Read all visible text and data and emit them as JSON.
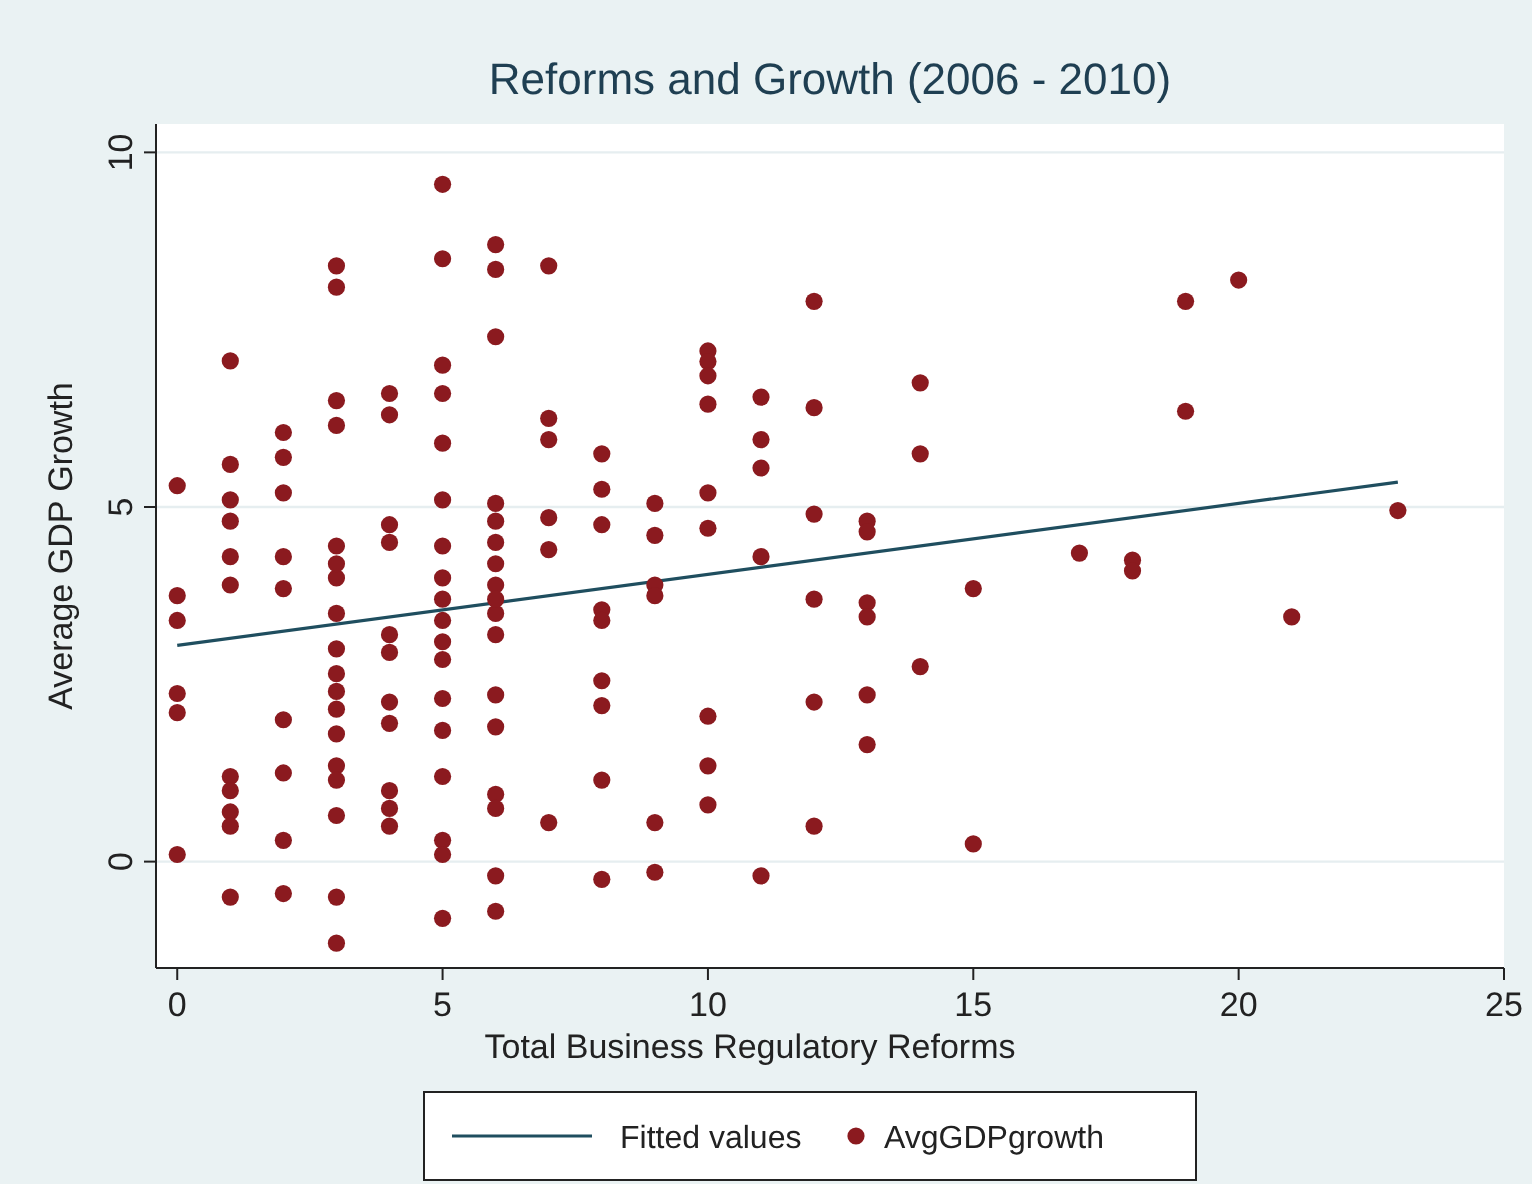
{
  "chart_data": {
    "type": "scatter",
    "title": "Reforms and Growth (2006 - 2010)",
    "xlabel": "Total Business Regulatory Reforms",
    "ylabel": "Average GDP Growth",
    "xlim": [
      -0.4,
      25
    ],
    "xticks": [
      0,
      5,
      10,
      15,
      20,
      25
    ],
    "ylim": [
      -1.5,
      10.4
    ],
    "yticks": [
      0,
      5,
      10
    ],
    "grid": "y",
    "legend": "bottom",
    "marker": "circle",
    "series": [
      {
        "type": "line",
        "name": "Fitted values",
        "color": "#1f4e5f",
        "marker": "none",
        "line_style": "solid",
        "x": [
          0,
          23
        ],
        "values": [
          3.05,
          5.35
        ]
      },
      {
        "name": "AvgGDPgrowth",
        "color": "#8b1a1f",
        "x": [
          0,
          0,
          0,
          0,
          0,
          0,
          1,
          1,
          1,
          1,
          1,
          1,
          1,
          1,
          1,
          1,
          1,
          2,
          2,
          2,
          2,
          2,
          2,
          2,
          2,
          2,
          3,
          3,
          3,
          3,
          3,
          3,
          3,
          3,
          3,
          3,
          3,
          3,
          3,
          3,
          3,
          3,
          3,
          3,
          4,
          4,
          4,
          4,
          4,
          4,
          4,
          4,
          4,
          4,
          4,
          5,
          5,
          5,
          5,
          5,
          5,
          5,
          5,
          5,
          5,
          5,
          5,
          5,
          5,
          5,
          5,
          5,
          5,
          6,
          6,
          6,
          6,
          6,
          6,
          6,
          6,
          6,
          6,
          6,
          6,
          6,
          6,
          6,
          6,
          6,
          7,
          7,
          7,
          7,
          7,
          7,
          8,
          8,
          8,
          8,
          8,
          8,
          8,
          8,
          8,
          9,
          9,
          9,
          9,
          9,
          9,
          10,
          10,
          10,
          10,
          10,
          10,
          10,
          10,
          10,
          11,
          11,
          11,
          11,
          11,
          12,
          12,
          12,
          12,
          12,
          12,
          13,
          13,
          13,
          13,
          13,
          13,
          14,
          14,
          14,
          15,
          15,
          17,
          18,
          18,
          19,
          19,
          20,
          21,
          23
        ],
        "values": [
          5.3,
          3.75,
          3.4,
          2.37,
          2.1,
          0.1,
          7.06,
          5.6,
          5.1,
          4.8,
          4.3,
          3.9,
          1.2,
          1.0,
          0.7,
          0.5,
          -0.5,
          6.05,
          5.7,
          5.2,
          4.3,
          3.85,
          2.0,
          1.25,
          0.3,
          -0.45,
          8.4,
          8.1,
          6.5,
          6.15,
          4.45,
          4.0,
          3.5,
          3.0,
          2.65,
          2.4,
          2.15,
          1.8,
          1.35,
          1.15,
          0.65,
          -0.5,
          -1.15,
          4.2,
          6.6,
          6.3,
          4.75,
          4.5,
          3.2,
          2.95,
          2.25,
          1.95,
          1.0,
          0.75,
          0.5,
          9.55,
          8.5,
          7.0,
          6.6,
          5.9,
          5.1,
          4.45,
          4.0,
          3.4,
          3.1,
          2.85,
          2.3,
          1.85,
          1.2,
          0.3,
          0.1,
          -0.8,
          3.7,
          8.7,
          8.35,
          7.4,
          5.05,
          4.8,
          4.5,
          4.2,
          3.9,
          3.5,
          3.2,
          2.35,
          1.9,
          0.95,
          0.75,
          -0.2,
          -0.7,
          3.7,
          8.4,
          6.25,
          5.95,
          4.85,
          4.4,
          0.55,
          5.75,
          5.25,
          4.75,
          3.55,
          3.4,
          2.55,
          2.2,
          1.15,
          -0.25,
          5.05,
          4.6,
          3.9,
          3.75,
          0.55,
          -0.15,
          7.2,
          7.05,
          6.85,
          6.45,
          5.2,
          4.7,
          2.05,
          1.35,
          0.8,
          6.55,
          5.95,
          5.55,
          4.3,
          -0.2,
          7.9,
          6.4,
          4.9,
          3.7,
          2.25,
          0.5,
          4.8,
          4.65,
          3.65,
          3.45,
          2.35,
          1.65,
          6.75,
          5.75,
          2.75,
          3.85,
          0.25,
          4.35,
          4.25,
          4.1,
          7.9,
          6.35,
          8.2,
          3.45,
          4.95
        ]
      }
    ]
  }
}
